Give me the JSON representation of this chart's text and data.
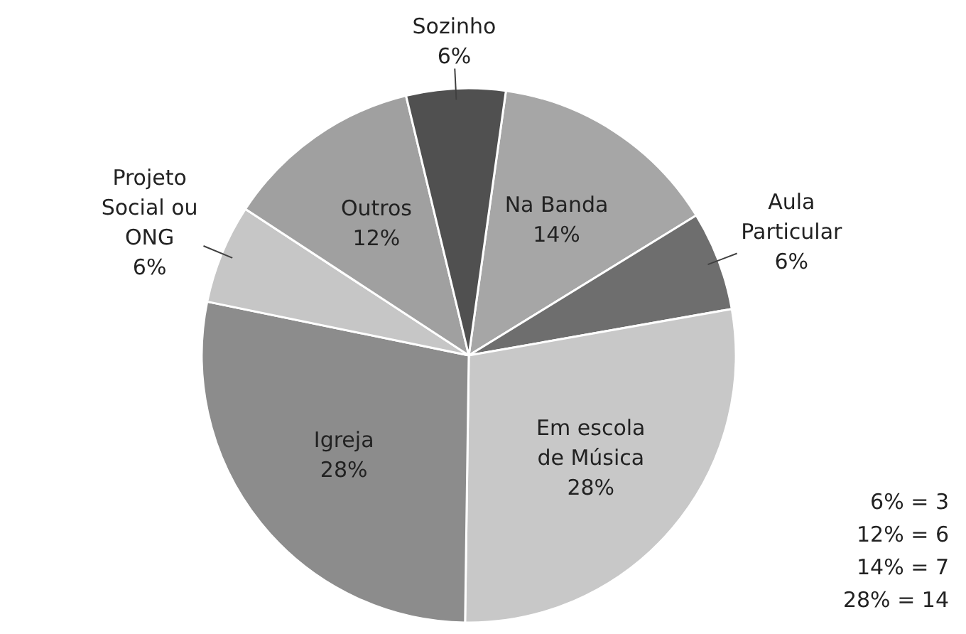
{
  "chart_data": {
    "type": "pie",
    "categories": [
      "Na Banda",
      "Aula Particular",
      "Em escola de Música",
      "Igreja",
      "Projeto Social ou ONG",
      "Outros",
      "Sozinho"
    ],
    "values": [
      14,
      6,
      28,
      28,
      6,
      12,
      6
    ],
    "colors": [
      "#a6a6a6",
      "#6e6e6e",
      "#c8c8c8",
      "#8c8c8c",
      "#c6c6c6",
      "#a0a0a0",
      "#505050"
    ],
    "value_labels": [
      "14%",
      "6%",
      "28%",
      "28%",
      "6%",
      "12%",
      "6%"
    ],
    "annotations": [
      "6% = 3",
      "12% = 6",
      "14% = 7",
      "28% = 14"
    ]
  }
}
